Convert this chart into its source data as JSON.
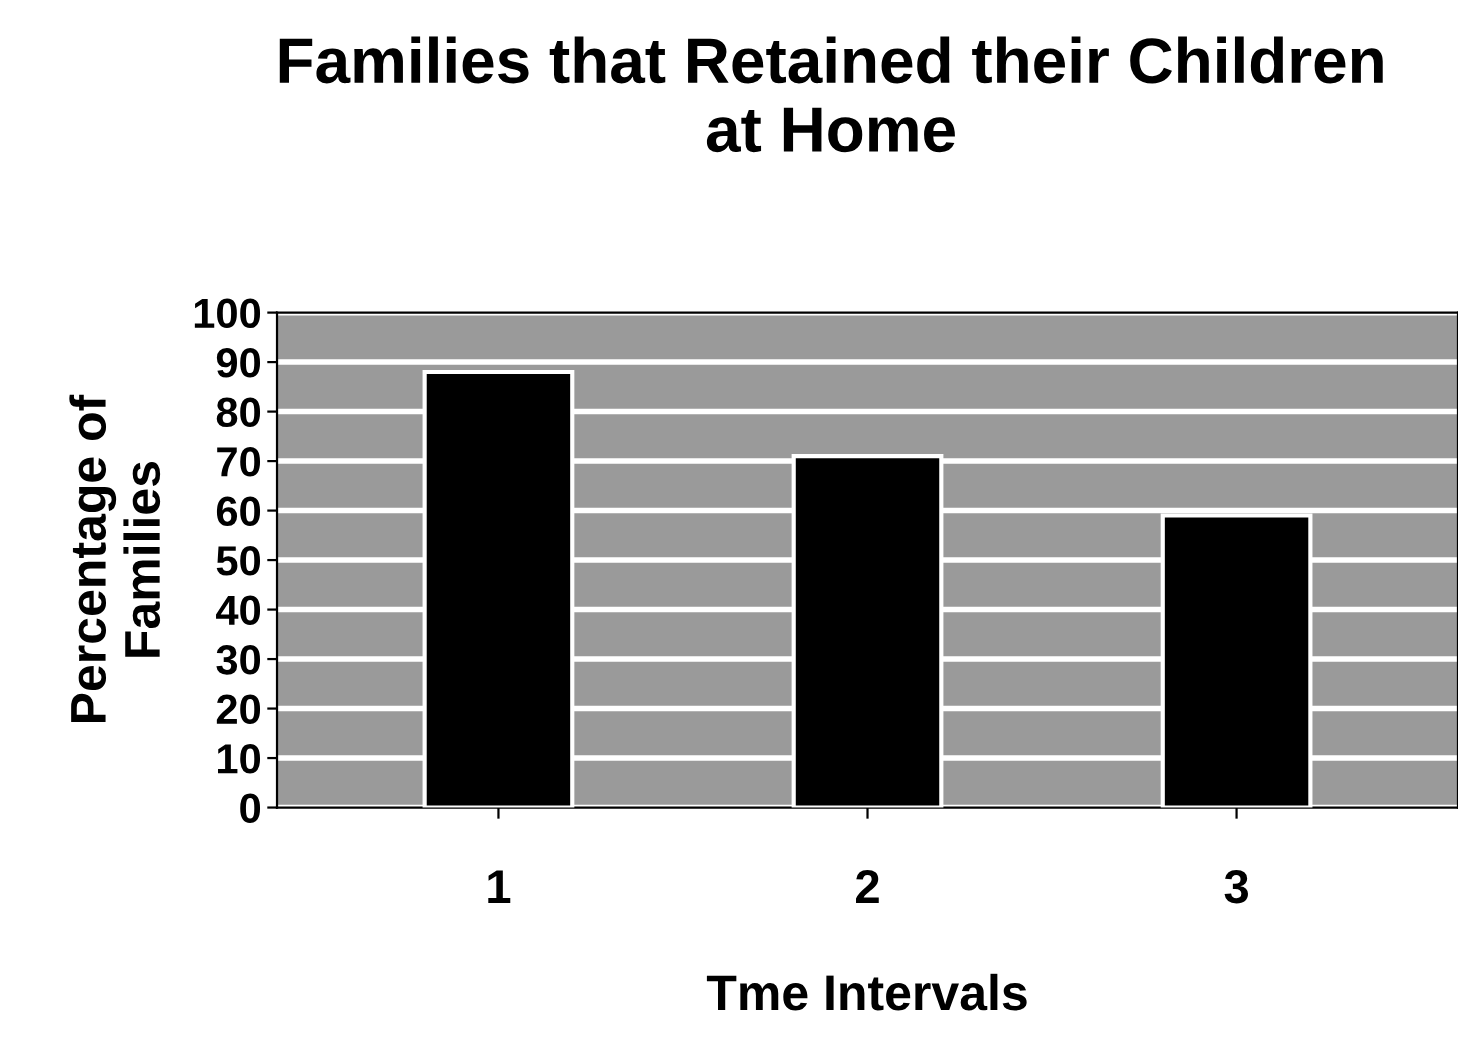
{
  "chart_data": {
    "type": "bar",
    "title": "Families that Retained their Children\nat Home",
    "xlabel": "Tme Intervals",
    "ylabel": "Percentage of\nFamilies",
    "categories": [
      "1",
      "2",
      "3"
    ],
    "values": [
      88,
      71,
      59
    ],
    "color": "#000000",
    "ylim": [
      0,
      100
    ],
    "yticks": [
      0,
      10,
      20,
      30,
      40,
      50,
      60,
      70,
      80,
      90,
      100
    ],
    "grid": "y"
  }
}
